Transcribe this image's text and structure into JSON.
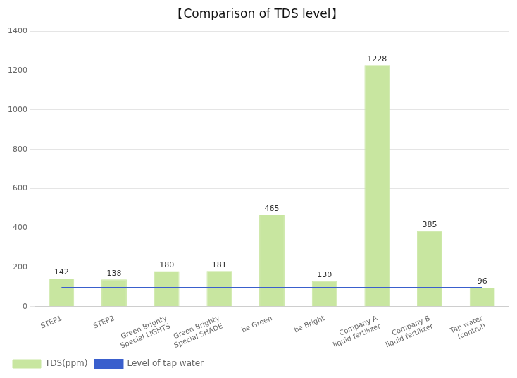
{
  "chart_data": {
    "type": "bar",
    "title": "【Comparison of TDS level】",
    "categories": [
      "STEP1",
      "STEP2",
      "Green Brighty\nSpecial LIGHTS",
      "Green Brighty\nSpecial SHADE",
      "be Green",
      "be Bright",
      "Company A\nliquid fertilizer",
      "Company B\nliquid fertilizer",
      "Tap water\n(control)"
    ],
    "series": [
      {
        "name": "TDS(ppm)",
        "type": "bar",
        "color": "#c8e6a0",
        "values": [
          142,
          138,
          180,
          181,
          465,
          130,
          1228,
          385,
          96
        ]
      },
      {
        "name": "Level of tap water",
        "type": "line",
        "color": "#3a5fcd",
        "values": [
          96,
          96,
          96,
          96,
          96,
          96,
          96,
          96,
          96
        ]
      }
    ],
    "ylim": [
      0,
      1400
    ],
    "yticks": [
      0,
      200,
      400,
      600,
      800,
      1000,
      1200,
      1400
    ],
    "grid": true,
    "legend": "lower left",
    "data_labels": true
  }
}
